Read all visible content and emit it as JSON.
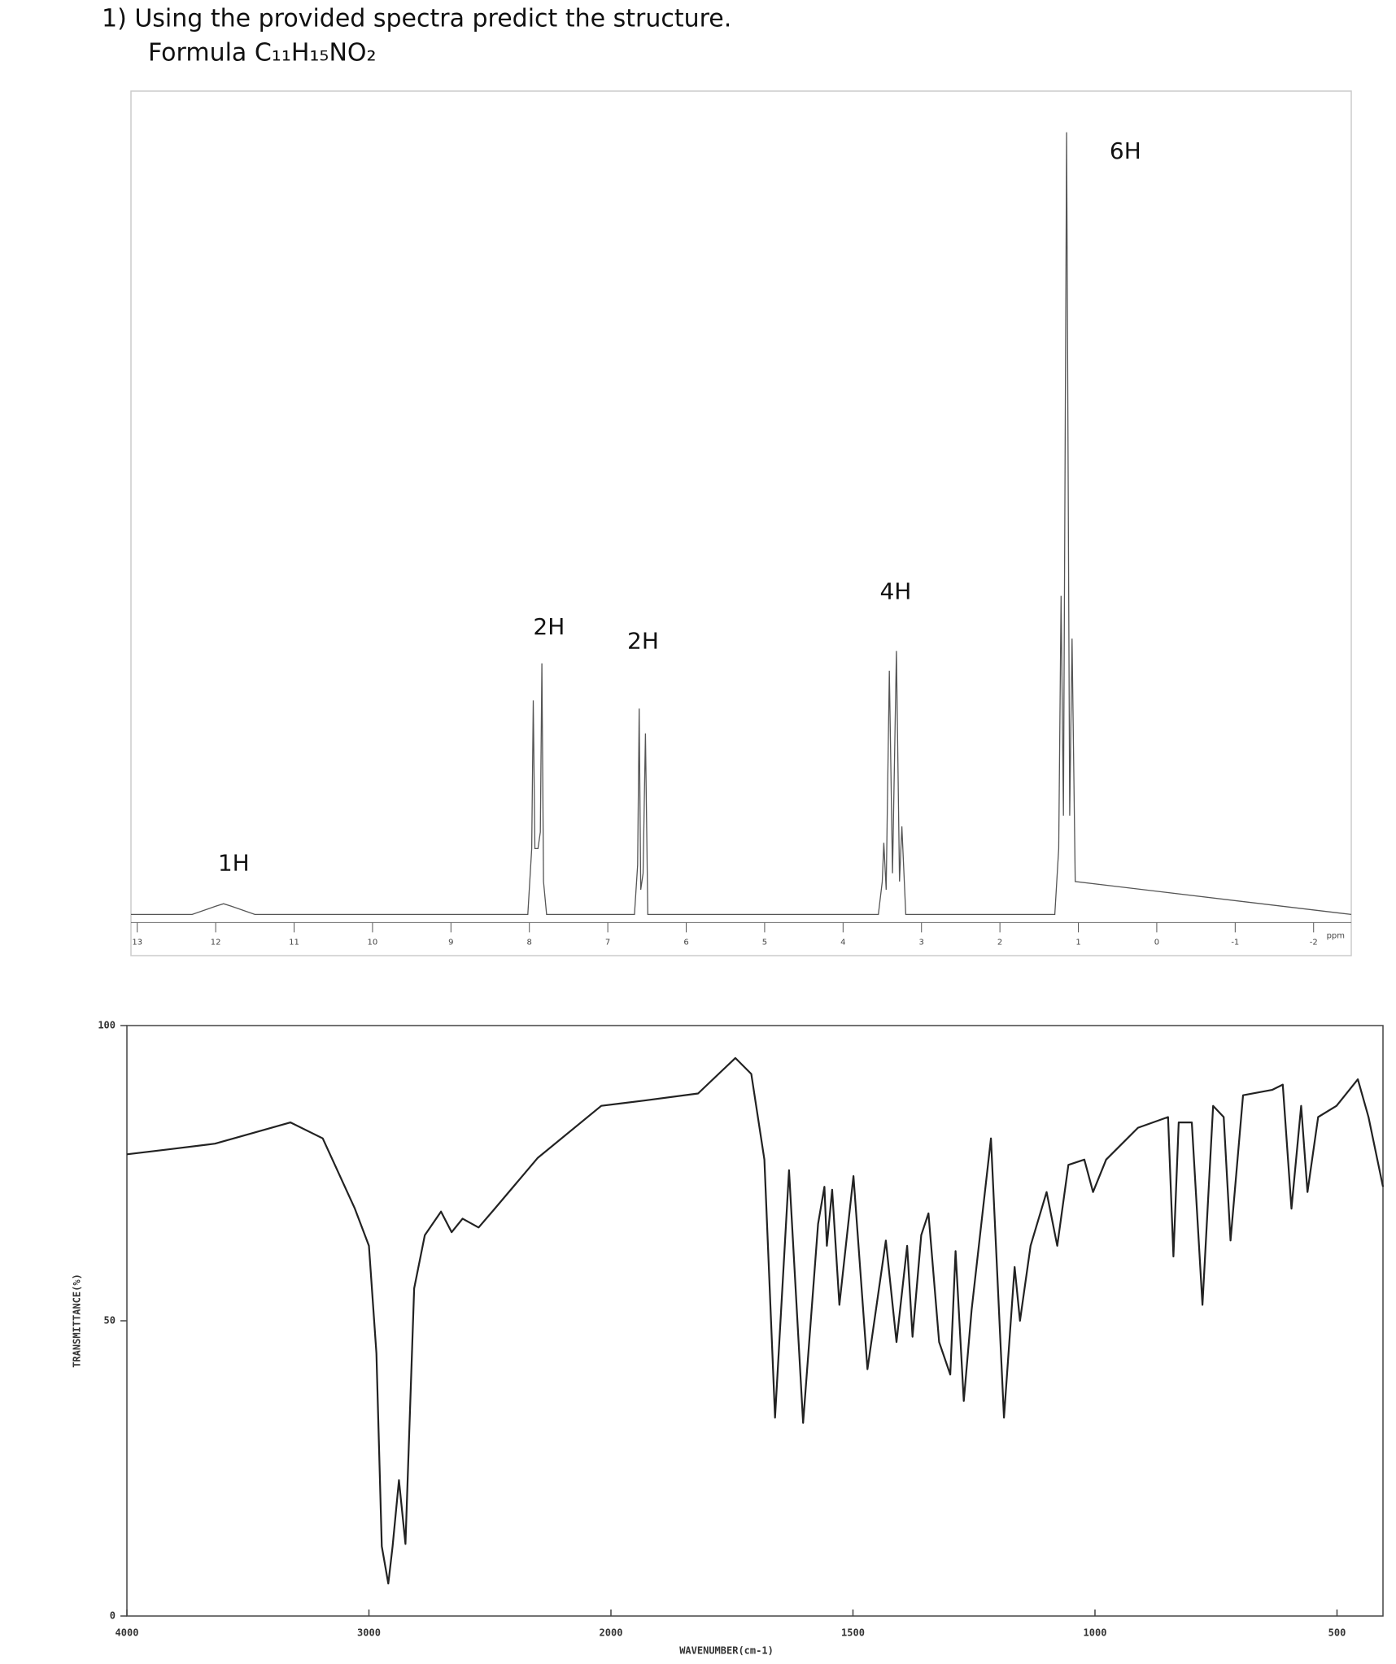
{
  "header": {
    "question": "1)  Using the provided spectra predict the structure.",
    "formula": "Formula C₁₁H₁₅NO₂"
  },
  "chart_data": [
    {
      "type": "line",
      "xlim": [
        13.08,
        -2.48
      ],
      "ylim": [
        -5,
        100
      ],
      "xticks": [
        13,
        12,
        11,
        10,
        9,
        8,
        7,
        6,
        5,
        4,
        3,
        2,
        1,
        0,
        -1,
        -2
      ],
      "xunit": "ppm",
      "series": [
        {
          "color": "#555555",
          "x": [
            13.08,
            12.3,
            12.0,
            11.9,
            11.8,
            11.5,
            8.02,
            7.97,
            7.95,
            7.93,
            7.89,
            7.86,
            7.84,
            7.82,
            7.78,
            6.66,
            6.62,
            6.6,
            6.58,
            6.55,
            6.52,
            6.49,
            3.55,
            3.5,
            3.48,
            3.45,
            3.41,
            3.37,
            3.32,
            3.28,
            3.25,
            3.2,
            1.3,
            1.25,
            1.22,
            1.19,
            1.15,
            1.11,
            1.08,
            1.04,
            -2.48
          ],
          "values": [
            0,
            0,
            1,
            1.3,
            1,
            0,
            0,
            8,
            26,
            8,
            8,
            10,
            30.5,
            4,
            0,
            0,
            6,
            25,
            3,
            5,
            22,
            0,
            0,
            4,
            8.7,
            3,
            29.6,
            5,
            32,
            4,
            10.7,
            0,
            0,
            8,
            38.7,
            12,
            95,
            12,
            33.5,
            4,
            0
          ]
        }
      ],
      "annotations": [
        {
          "text": "1H",
          "x": 11.77,
          "y": 6.1
        },
        {
          "text": "2H",
          "x": 7.75,
          "y": 34.8
        },
        {
          "text": "2H",
          "x": 6.55,
          "y": 33.1
        },
        {
          "text": "4H",
          "x": 3.33,
          "y": 39.1
        },
        {
          "text": "6H",
          "x": 0.4,
          "y": 92.6
        }
      ]
    },
    {
      "type": "line",
      "xlim": [
        4000,
        405
      ],
      "x_break": 2000,
      "x_expand": 2,
      "ylim": [
        0,
        100
      ],
      "xticks": [
        4000,
        3000,
        2000,
        1500,
        1000,
        500
      ],
      "yticks": [
        0,
        50,
        100
      ],
      "xlabel": "WAVENUMBER(cm-1)",
      "ylabel": "TRANSMITTANCE(%)",
      "series": [
        {
          "color": "#222222",
          "x": [
            4000,
            3813,
            3636,
            3324,
            3191,
            3058,
            3000,
            2969,
            2947,
            2920,
            2902,
            2876,
            2849,
            2813,
            2769,
            2702,
            2658,
            2613,
            2547,
            2480,
            2302,
            2040,
            1931,
            1820,
            1743,
            1710,
            1683,
            1661,
            1632,
            1603,
            1572,
            1559,
            1554,
            1543,
            1528,
            1499,
            1470,
            1432,
            1410,
            1388,
            1377,
            1359,
            1344,
            1322,
            1299,
            1288,
            1271,
            1255,
            1215,
            1188,
            1166,
            1155,
            1133,
            1100,
            1078,
            1055,
            1022,
            1004,
            977,
            911,
            849,
            838,
            827,
            800,
            778,
            756,
            734,
            720,
            694,
            634,
            612,
            594,
            574,
            561,
            539,
            501,
            457,
            435,
            405
          ],
          "values": [
            78.2,
            79.1,
            80,
            83.6,
            80.9,
            69,
            62.7,
            44.5,
            11.8,
            5.5,
            11.8,
            23,
            12.2,
            55.5,
            64.5,
            68.5,
            65,
            67.3,
            65.8,
            69,
            77.6,
            86.4,
            87.3,
            88.5,
            94.5,
            91.8,
            77.3,
            33.6,
            75.5,
            32.7,
            66.4,
            72.7,
            62.7,
            72.2,
            52.7,
            74.5,
            41.8,
            63.6,
            46.4,
            62.7,
            47.3,
            64.5,
            68.2,
            46.4,
            40.9,
            61.8,
            36.4,
            51.8,
            80.9,
            33.6,
            59.1,
            50,
            62.7,
            71.8,
            62.7,
            76.4,
            77.3,
            71.8,
            77.3,
            82.7,
            84.5,
            60.9,
            83.6,
            83.6,
            52.7,
            86.4,
            84.5,
            63.6,
            88.2,
            89.1,
            90,
            69,
            86.4,
            71.8,
            84.5,
            86.4,
            90.9,
            84.5,
            72.7
          ]
        }
      ]
    }
  ]
}
